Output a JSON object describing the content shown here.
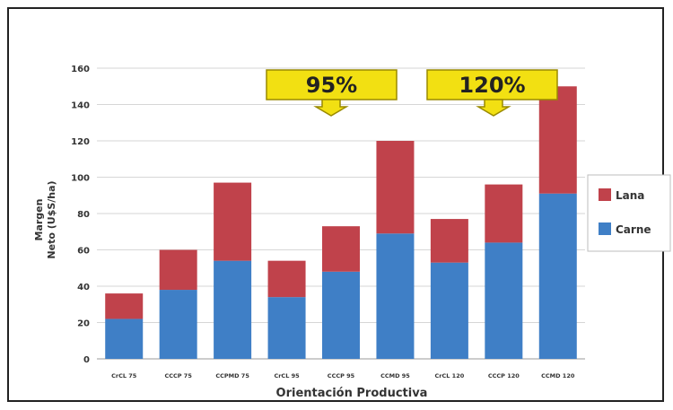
{
  "chart_data": {
    "type": "bar",
    "stacked": true,
    "categories": [
      "CrCL 75",
      "CCCP 75",
      "CCPMD 75",
      "CrCL 95",
      "CCCP 95",
      "CCMD 95",
      "CrCL 120",
      "CCCP 120",
      "CCMD 120"
    ],
    "series": [
      {
        "name": "Carne",
        "color": "#3f7fc6",
        "values": [
          22,
          38,
          54,
          34,
          48,
          69,
          53,
          64,
          91
        ]
      },
      {
        "name": "Lana",
        "color": "#c0424b",
        "values": [
          14,
          22,
          43,
          20,
          25,
          51,
          24,
          32,
          59
        ]
      }
    ],
    "xlabel": "Orientación Productiva",
    "ylabel": [
      "Margen",
      "Neto (U$S/ha)"
    ],
    "ylim": [
      0,
      160
    ],
    "yticks": [
      0,
      20,
      40,
      60,
      80,
      100,
      120,
      140,
      160
    ],
    "grid": true,
    "legend": {
      "placement": "right",
      "items": [
        "Lana",
        "Carne"
      ]
    },
    "annotations": [
      {
        "text": "95%",
        "points_to": "CCCP 95"
      },
      {
        "text": "120%",
        "points_to": "CCCP 120"
      }
    ]
  },
  "colors": {
    "callout_fill": "#f2e012",
    "callout_border": "#9a8a00",
    "grid": "#d6d6d6"
  }
}
